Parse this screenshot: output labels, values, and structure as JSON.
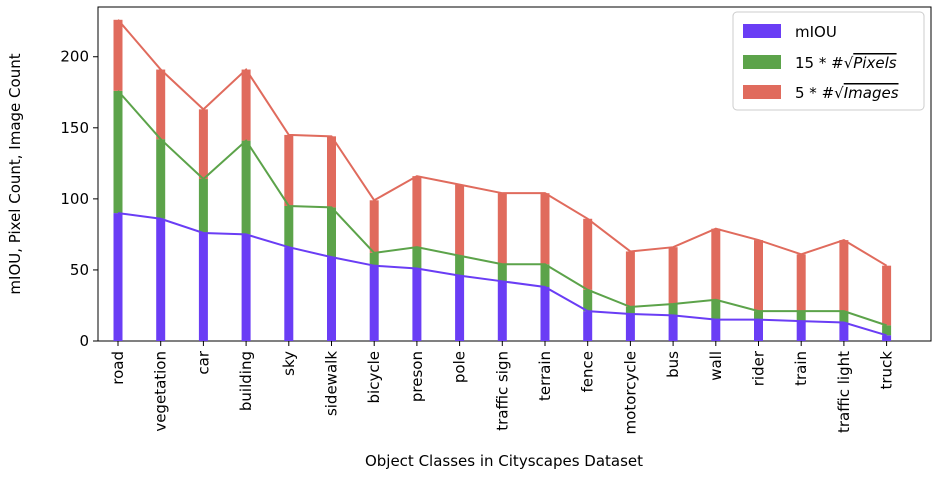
{
  "chart_data": {
    "type": "bar",
    "stacked": true,
    "xlabel": "Object Classes in Cityscapes Dataset",
    "ylabel": "mIOU, Pixel Count, Image Count",
    "ylim": [
      0,
      235
    ],
    "yticks": [
      0,
      50,
      100,
      150,
      200
    ],
    "categories": [
      "road",
      "vegetation",
      "car",
      "building",
      "sky",
      "sidewalk",
      "bicycle",
      "preson",
      "pole",
      "traffic sign",
      "terrain",
      "fence",
      "motorcycle",
      "bus",
      "wall",
      "rider",
      "train",
      "traffic light",
      "truck"
    ],
    "series": [
      {
        "name": "mIOU",
        "name_suffix": "",
        "color": "#6a3df5",
        "values": [
          90,
          86,
          76,
          75,
          66,
          59,
          53,
          51,
          46,
          42,
          38,
          21,
          19,
          18,
          15,
          15,
          14,
          13,
          4
        ]
      },
      {
        "name": "15 * #",
        "name_suffix": "Pixels",
        "color": "#5ca34a",
        "values": [
          86,
          56,
          38,
          66,
          29,
          35,
          9,
          15,
          14,
          12,
          16,
          15,
          5,
          8,
          14,
          6,
          7,
          8,
          7
        ]
      },
      {
        "name": "5 * #",
        "name_suffix": "Images",
        "color": "#e06b5d",
        "values": [
          50,
          49,
          49,
          50,
          50,
          50,
          37,
          50,
          50,
          50,
          50,
          50,
          39,
          40,
          50,
          50,
          40,
          50,
          42
        ]
      }
    ],
    "legend_position": "top-right",
    "grid": false
  }
}
